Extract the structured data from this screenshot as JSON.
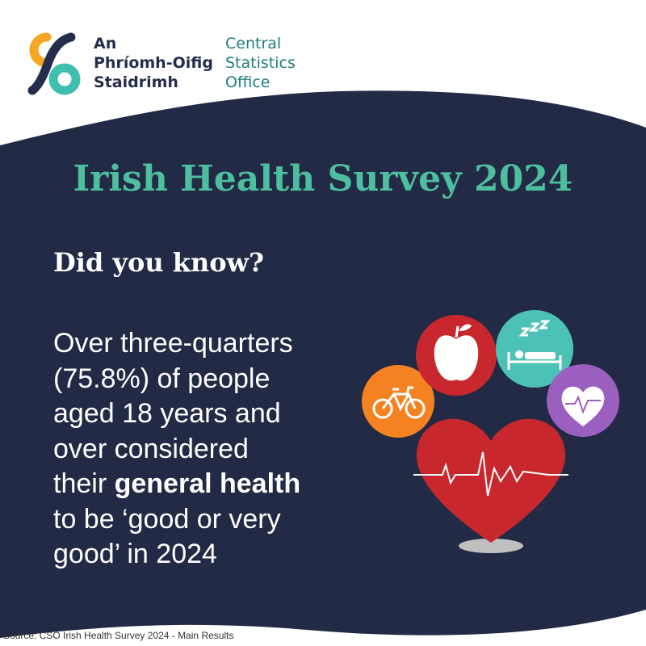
{
  "logo": {
    "irish": [
      "An",
      "Phríomh-Oifig",
      "Staidrimh"
    ],
    "english": [
      "Central",
      "Statistics",
      "Office"
    ]
  },
  "title": "Irish Health Survey 2024",
  "subtitle": "Did you know?",
  "body": {
    "lines_before": [
      "Over three-quarters",
      "(75.8%) of people",
      "aged 18 years and",
      "over considered"
    ],
    "emphasis_line": {
      "text": "their",
      "bold": "general health"
    },
    "lines_after": [
      "to be ‘good or very",
      "good’ in 2024"
    ]
  },
  "source": "Source: CSO Irish Health Survey 2024 - Main Results"
}
